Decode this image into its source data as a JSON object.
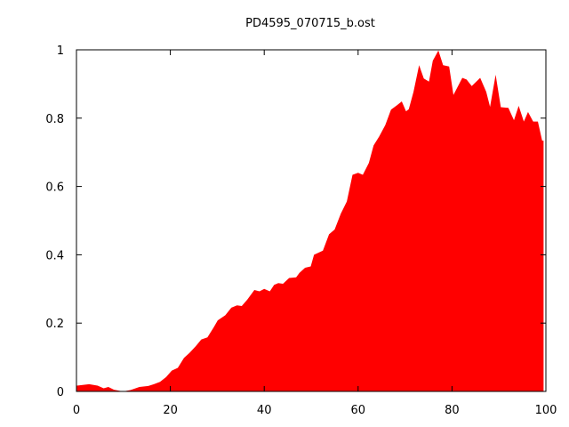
{
  "chart_data": {
    "type": "area",
    "title": "PD4595_070715_b.ost",
    "xlabel": "",
    "ylabel": "",
    "xlim": [
      0,
      100
    ],
    "ylim": [
      0,
      1
    ],
    "xticks": [
      "0",
      "20",
      "40",
      "60",
      "80",
      "100"
    ],
    "yticks": [
      "0",
      "0.2",
      "0.4",
      "0.6",
      "0.8",
      "1"
    ],
    "grid": false,
    "legend": "none",
    "fill_color": "#ff0000",
    "x": [
      0.1,
      2.7,
      4.5,
      5.8,
      6.8,
      8.0,
      9.9,
      11.5,
      13.4,
      15.3,
      16.5,
      17.8,
      19.1,
      20.3,
      21.6,
      22.9,
      24.1,
      25.4,
      26.6,
      27.9,
      29.2,
      30.1,
      31.7,
      33.0,
      34.2,
      35.2,
      36.4,
      37.9,
      39.0,
      40.0,
      41.2,
      42.1,
      43.0,
      44.0,
      45.3,
      46.8,
      47.5,
      48.7,
      49.9,
      50.6,
      52.5,
      53.8,
      55.0,
      56.3,
      57.6,
      58.8,
      60.0,
      61.0,
      62.3,
      63.3,
      64.5,
      65.8,
      67.0,
      68.3,
      69.3,
      70.2,
      70.8,
      71.8,
      73.0,
      74.0,
      75.1,
      75.9,
      77.1,
      78.1,
      79.4,
      80.3,
      82.2,
      83.1,
      84.2,
      86.0,
      87.3,
      88.1,
      89.3,
      90.4,
      92.0,
      93.2,
      94.2,
      95.3,
      96.2,
      97.3,
      98.3,
      99.2,
      99.5
    ],
    "y": [
      0.017,
      0.021,
      0.017,
      0.009,
      0.013,
      0.005,
      0.0,
      0.004,
      0.013,
      0.016,
      0.021,
      0.028,
      0.042,
      0.061,
      0.069,
      0.098,
      0.113,
      0.132,
      0.152,
      0.158,
      0.187,
      0.208,
      0.223,
      0.245,
      0.252,
      0.25,
      0.269,
      0.297,
      0.293,
      0.3,
      0.293,
      0.312,
      0.317,
      0.315,
      0.332,
      0.334,
      0.347,
      0.362,
      0.366,
      0.4,
      0.412,
      0.46,
      0.474,
      0.52,
      0.556,
      0.634,
      0.64,
      0.634,
      0.669,
      0.72,
      0.747,
      0.78,
      0.825,
      0.838,
      0.849,
      0.82,
      0.826,
      0.877,
      0.955,
      0.916,
      0.907,
      0.968,
      0.998,
      0.955,
      0.951,
      0.868,
      0.918,
      0.913,
      0.894,
      0.918,
      0.877,
      0.833,
      0.927,
      0.832,
      0.83,
      0.794,
      0.836,
      0.79,
      0.818,
      0.79,
      0.79,
      0.734,
      0.734
    ]
  }
}
